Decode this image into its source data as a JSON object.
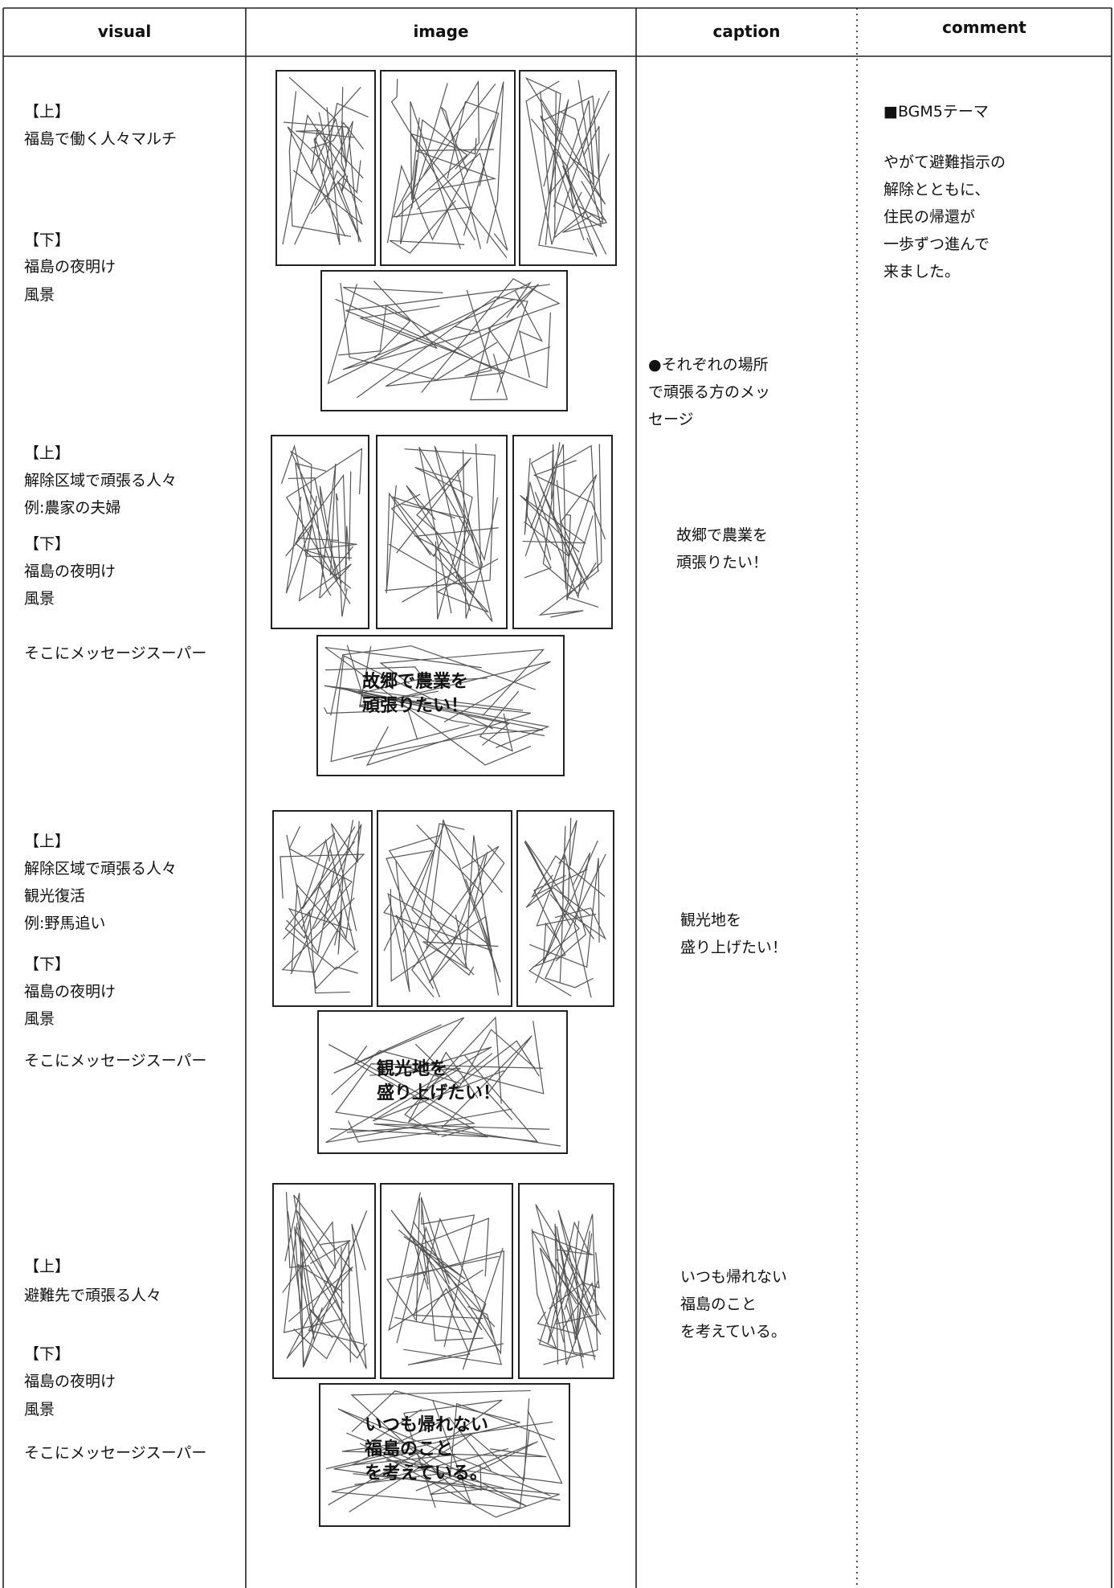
{
  "header": {
    "columns": [
      "visual",
      "image",
      "caption",
      "comment"
    ]
  },
  "rows": [
    {
      "visual": [
        "【上】",
        "福島で働く人々マルチ",
        "【下】",
        "福島の夜明け",
        "風景"
      ],
      "caption": [
        "●それぞれの場所",
        "で頑張る方のメッ",
        "セージ"
      ],
      "comment": [
        "■BGM5テーマ",
        "やがて避難指示の",
        "解除とともに、",
        "住民の帰還が",
        "一歩ずつ進んで",
        "来ました。"
      ],
      "super": []
    },
    {
      "visual": [
        "【上】",
        "解除区域で頑張る人々",
        "例:農家の夫婦",
        "【下】",
        "福島の夜明け",
        "風景",
        "そこにメッセージスーパー"
      ],
      "caption": [
        "故郷で農業を",
        "頑張りたい！"
      ],
      "comment": [],
      "super": [
        "故郷で農業を",
        "頑張りたい！"
      ]
    },
    {
      "visual": [
        "【上】",
        "解除区域で頑張る人々",
        "観光復活",
        "例:野馬追い",
        "【下】",
        "福島の夜明け",
        "風景",
        "そこにメッセージスーパー"
      ],
      "caption": [
        "観光地を",
        "盛り上げたい！"
      ],
      "comment": [],
      "super": [
        "観光地を",
        "盛り上げたい！"
      ]
    },
    {
      "visual": [
        "【上】",
        "避難先で頑張る人々",
        "【下】",
        "福島の夜明け",
        "風景",
        "そこにメッセージスーパー"
      ],
      "caption": [
        "いつも帰れない",
        "福島のこと",
        "を考えている。"
      ],
      "comment": [],
      "super": [
        "いつも帰れない",
        "福島のこと",
        "を考えている。"
      ]
    }
  ]
}
